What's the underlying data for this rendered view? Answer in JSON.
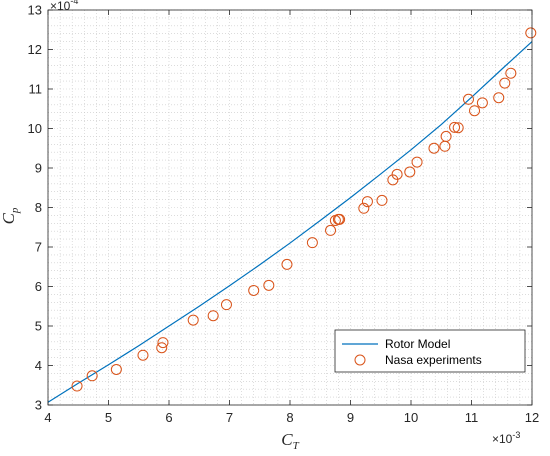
{
  "chart_data": {
    "type": "line",
    "xlabel": {
      "base": "C",
      "sub": "T"
    },
    "ylabel": {
      "base": "C",
      "sub": "p"
    },
    "x_exponent": "×10",
    "x_exponent_power": "-3",
    "y_exponent": "×10",
    "y_exponent_power": "-4",
    "xlim": [
      4,
      12
    ],
    "ylim": [
      3,
      13
    ],
    "xticks": [
      "4",
      "5",
      "6",
      "7",
      "8",
      "9",
      "10",
      "11",
      "12"
    ],
    "yticks": [
      "3",
      "4",
      "5",
      "6",
      "7",
      "8",
      "9",
      "10",
      "11",
      "12",
      "13"
    ],
    "grid": "minor-dotted",
    "legend_position": "bottom-right",
    "colors": {
      "model": "#0072BD",
      "experiments": "#D95319",
      "axis": "#262626"
    },
    "series": [
      {
        "name": "Rotor Model",
        "kind": "line",
        "x": [
          4.0,
          4.5,
          5.0,
          5.5,
          6.0,
          6.5,
          7.0,
          7.5,
          8.0,
          8.5,
          9.0,
          9.5,
          10.0,
          10.5,
          11.0,
          11.5,
          12.0
        ],
        "y": [
          3.07,
          3.55,
          4.02,
          4.5,
          5.0,
          5.5,
          6.02,
          6.55,
          7.1,
          7.67,
          8.25,
          8.85,
          9.46,
          10.1,
          10.79,
          11.5,
          12.2
        ]
      },
      {
        "name": "Nasa experiments",
        "kind": "scatter",
        "x": [
          4.48,
          4.73,
          5.13,
          5.57,
          5.88,
          5.9,
          6.4,
          6.73,
          6.95,
          7.4,
          7.65,
          7.95,
          8.37,
          8.67,
          8.75,
          8.8,
          8.82,
          9.22,
          9.28,
          9.52,
          9.7,
          9.77,
          9.98,
          10.1,
          10.38,
          10.56,
          10.58,
          10.72,
          10.78,
          10.95,
          11.05,
          11.18,
          11.45,
          11.55,
          11.65,
          11.98
        ],
        "y": [
          3.48,
          3.74,
          3.9,
          4.26,
          4.45,
          4.58,
          5.15,
          5.26,
          5.54,
          5.9,
          6.03,
          6.56,
          7.11,
          7.42,
          7.67,
          7.7,
          7.7,
          7.98,
          8.15,
          8.18,
          8.7,
          8.84,
          8.9,
          9.15,
          9.5,
          9.55,
          9.8,
          10.03,
          10.02,
          10.74,
          10.45,
          10.65,
          10.78,
          11.15,
          11.4,
          12.42
        ]
      }
    ]
  }
}
